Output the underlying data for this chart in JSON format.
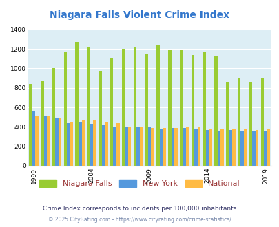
{
  "title": "Niagara Falls Violent Crime Index",
  "subtitle": "Crime Index corresponds to incidents per 100,000 inhabitants",
  "footer": "© 2025 CityRating.com - https://www.cityrating.com/crime-statistics/",
  "plot_years": [
    1999,
    2000,
    2001,
    2002,
    2003,
    2004,
    2005,
    2006,
    2007,
    2008,
    2009,
    2010,
    2011,
    2012,
    2013,
    2014,
    2015,
    2016,
    2017,
    2018,
    2019
  ],
  "nf_vals": [
    840,
    870,
    1005,
    1170,
    1270,
    1215,
    975,
    1100,
    1200,
    1215,
    1155,
    1235,
    1185,
    1185,
    1135,
    1165,
    1130,
    865,
    905,
    865,
    905
  ],
  "ny_vals": [
    555,
    505,
    495,
    435,
    445,
    430,
    415,
    395,
    395,
    400,
    405,
    380,
    385,
    385,
    380,
    370,
    350,
    365,
    355,
    350,
    360
  ],
  "nat_vals": [
    505,
    510,
    490,
    455,
    470,
    465,
    445,
    435,
    400,
    395,
    390,
    385,
    385,
    395,
    395,
    375,
    375,
    375,
    383,
    369,
    380
  ],
  "color_niagara": "#99cc33",
  "color_newyork": "#5599dd",
  "color_national": "#ffbb44",
  "bg_color": "#ddeef5",
  "title_color": "#3377cc",
  "ylim": [
    0,
    1400
  ],
  "yticks": [
    0,
    200,
    400,
    600,
    800,
    1000,
    1200,
    1400
  ],
  "shown_years": [
    1999,
    2004,
    2009,
    2014,
    2019
  ],
  "legend_labels": [
    "Niagara Falls",
    "New York",
    "National"
  ],
  "legend_label_color": "#993333",
  "bar_width": 0.27,
  "subtitle_color": "#333366",
  "footer_color": "#7788aa"
}
